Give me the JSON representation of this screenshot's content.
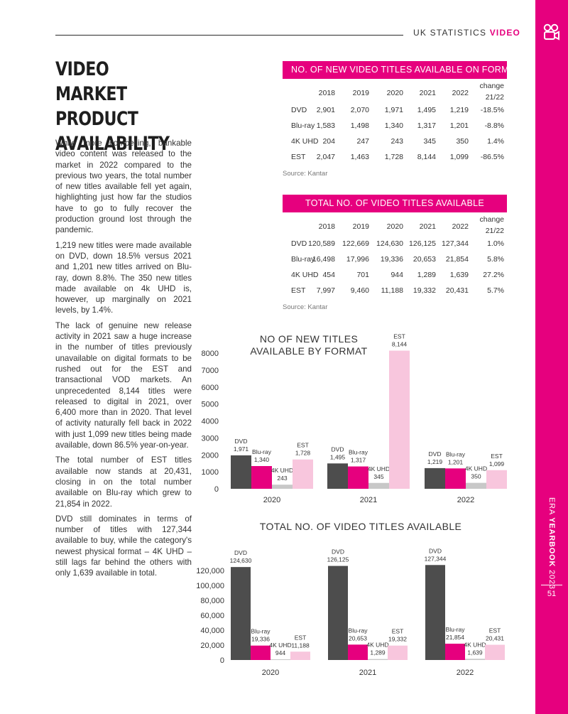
{
  "header": {
    "label": "UK STATISTICS",
    "accent": "VIDEO"
  },
  "side": {
    "prefix": "ERA",
    "bold": "YEARBOOK",
    "year": "2023",
    "page": "51",
    "icon": "video-camera-icon"
  },
  "colors": {
    "magenta": "#e6007e",
    "dvd": "#4d4d4d",
    "bluray": "#e6007e",
    "uhd": "#c8c8c8",
    "est": "#f8c6dd"
  },
  "title": "VIDEO MARKET PRODUCT AVAILABILITY",
  "paragraphs": [
    "While more compelling, bankable video content was released to the market in 2022 compared to the previous two years, the total number of new titles available fell yet again, highlighting just how far the studios have to go to fully recover the production ground lost through the pandemic.",
    "1,219 new titles were made available on DVD, down 18.5% versus 2021 and 1,201 new titles arrived on Blu-ray, down 8.8%. The 350 new titles made available on 4k UHD is, however, up marginally on 2021 levels, by 1.4%.",
    "The lack of genuine new release activity in 2021 saw a huge increase in the number of titles previously unavailable on digital formats to be rushed out for the EST and transactional VOD markets. An unprecedented 8,144 titles were released to digital in 2021, over 6,400 more than in 2020. That level of activity naturally fell back in 2022 with just 1,099 new titles being made available, down 86.5% year-on-year.",
    "The total number of EST titles available now stands at 20,431, closing in on the total number available on Blu-ray which grew to 21,854 in 2022.",
    "DVD still dominates in terms of number of titles with 127,344 available to buy, while the category's newest physical format – 4K UHD – still lags far behind the others with only 1,639 available in total."
  ],
  "table1": {
    "title": "NO. OF NEW VIDEO TITLES AVAILABLE ON FORMAT",
    "columns": [
      "2018",
      "2019",
      "2020",
      "2021",
      "2022"
    ],
    "change_label_1": "change",
    "change_label_2": "21/22",
    "rows": [
      {
        "label": "DVD",
        "values": [
          "2,901",
          "2,070",
          "1,971",
          "1,495",
          "1,219"
        ],
        "change": "-18.5%"
      },
      {
        "label": "Blu-ray",
        "values": [
          "1,583",
          "1,498",
          "1,340",
          "1,317",
          "1,201"
        ],
        "change": "-8.8%"
      },
      {
        "label": "4K UHD",
        "values": [
          "204",
          "247",
          "243",
          "345",
          "350"
        ],
        "change": "1.4%"
      },
      {
        "label": "EST",
        "values": [
          "2,047",
          "1,463",
          "1,728",
          "8,144",
          "1,099"
        ],
        "change": "-86.5%"
      }
    ],
    "source": "Source: Kantar"
  },
  "table2": {
    "title": "TOTAL NO. OF VIDEO TITLES AVAILABLE",
    "columns": [
      "2018",
      "2019",
      "2020",
      "2021",
      "2022"
    ],
    "change_label_1": "change",
    "change_label_2": "21/22",
    "rows": [
      {
        "label": "DVD",
        "values": [
          "120,589",
          "122,669",
          "124,630",
          "126,125",
          "127,344"
        ],
        "change": "1.0%"
      },
      {
        "label": "Blu-ray",
        "values": [
          "16,498",
          "17,996",
          "19,336",
          "20,653",
          "21,854"
        ],
        "change": "5.8%"
      },
      {
        "label": "4K UHD",
        "values": [
          "454",
          "701",
          "944",
          "1,289",
          "1,639"
        ],
        "change": "27.2%"
      },
      {
        "label": "EST",
        "values": [
          "7,997",
          "9,460",
          "11,188",
          "19,332",
          "20,431"
        ],
        "change": "5.7%"
      }
    ],
    "source": "Source: Kantar"
  },
  "chart_data": [
    {
      "type": "bar",
      "title": "NO OF NEW TITLES AVAILABLE BY FORMAT",
      "title_lines": [
        "NO OF NEW TITLES",
        "AVAILABLE BY FORMAT"
      ],
      "categories": [
        "2020",
        "2021",
        "2022"
      ],
      "series": [
        {
          "name": "DVD",
          "values": [
            1971,
            1495,
            1219
          ]
        },
        {
          "name": "Blu-ray",
          "values": [
            1340,
            1317,
            1201
          ]
        },
        {
          "name": "4K UHD",
          "values": [
            243,
            345,
            350
          ]
        },
        {
          "name": "EST",
          "values": [
            1728,
            8144,
            1099
          ]
        }
      ],
      "data_labels": [
        [
          "1,971",
          "1,495",
          "1,219"
        ],
        [
          "1,340",
          "1,317",
          "1,201"
        ],
        [
          "243",
          "345",
          "350"
        ],
        [
          "1,728",
          "8,144",
          "1,099"
        ]
      ],
      "yticks": [
        "0",
        "1000",
        "2000",
        "3000",
        "4000",
        "5000",
        "6000",
        "7000",
        "8000"
      ],
      "ylim": [
        0,
        8000
      ],
      "grid": false,
      "legend": "none"
    },
    {
      "type": "bar",
      "title": "TOTAL NO. OF VIDEO TITLES AVAILABLE",
      "title_lines": [
        "TOTAL NO. OF VIDEO TITLES AVAILABLE"
      ],
      "categories": [
        "2020",
        "2021",
        "2022"
      ],
      "series": [
        {
          "name": "DVD",
          "values": [
            124630,
            126125,
            127344
          ]
        },
        {
          "name": "Blu-ray",
          "values": [
            19336,
            20653,
            21854
          ]
        },
        {
          "name": "4K UHD",
          "values": [
            944,
            1289,
            1639
          ]
        },
        {
          "name": "EST",
          "values": [
            11188,
            19332,
            20431
          ]
        }
      ],
      "data_labels": [
        [
          "124,630",
          "126,125",
          "127,344"
        ],
        [
          "19,336",
          "20,653",
          "21,854"
        ],
        [
          "944",
          "1,289",
          "1,639"
        ],
        [
          "11,188",
          "19,332",
          "20,431"
        ]
      ],
      "yticks": [
        "0",
        "20,000",
        "40,000",
        "60,000",
        "80,000",
        "100,000",
        "120,000"
      ],
      "ylim": [
        0,
        120000
      ],
      "grid": false,
      "legend": "none"
    }
  ]
}
